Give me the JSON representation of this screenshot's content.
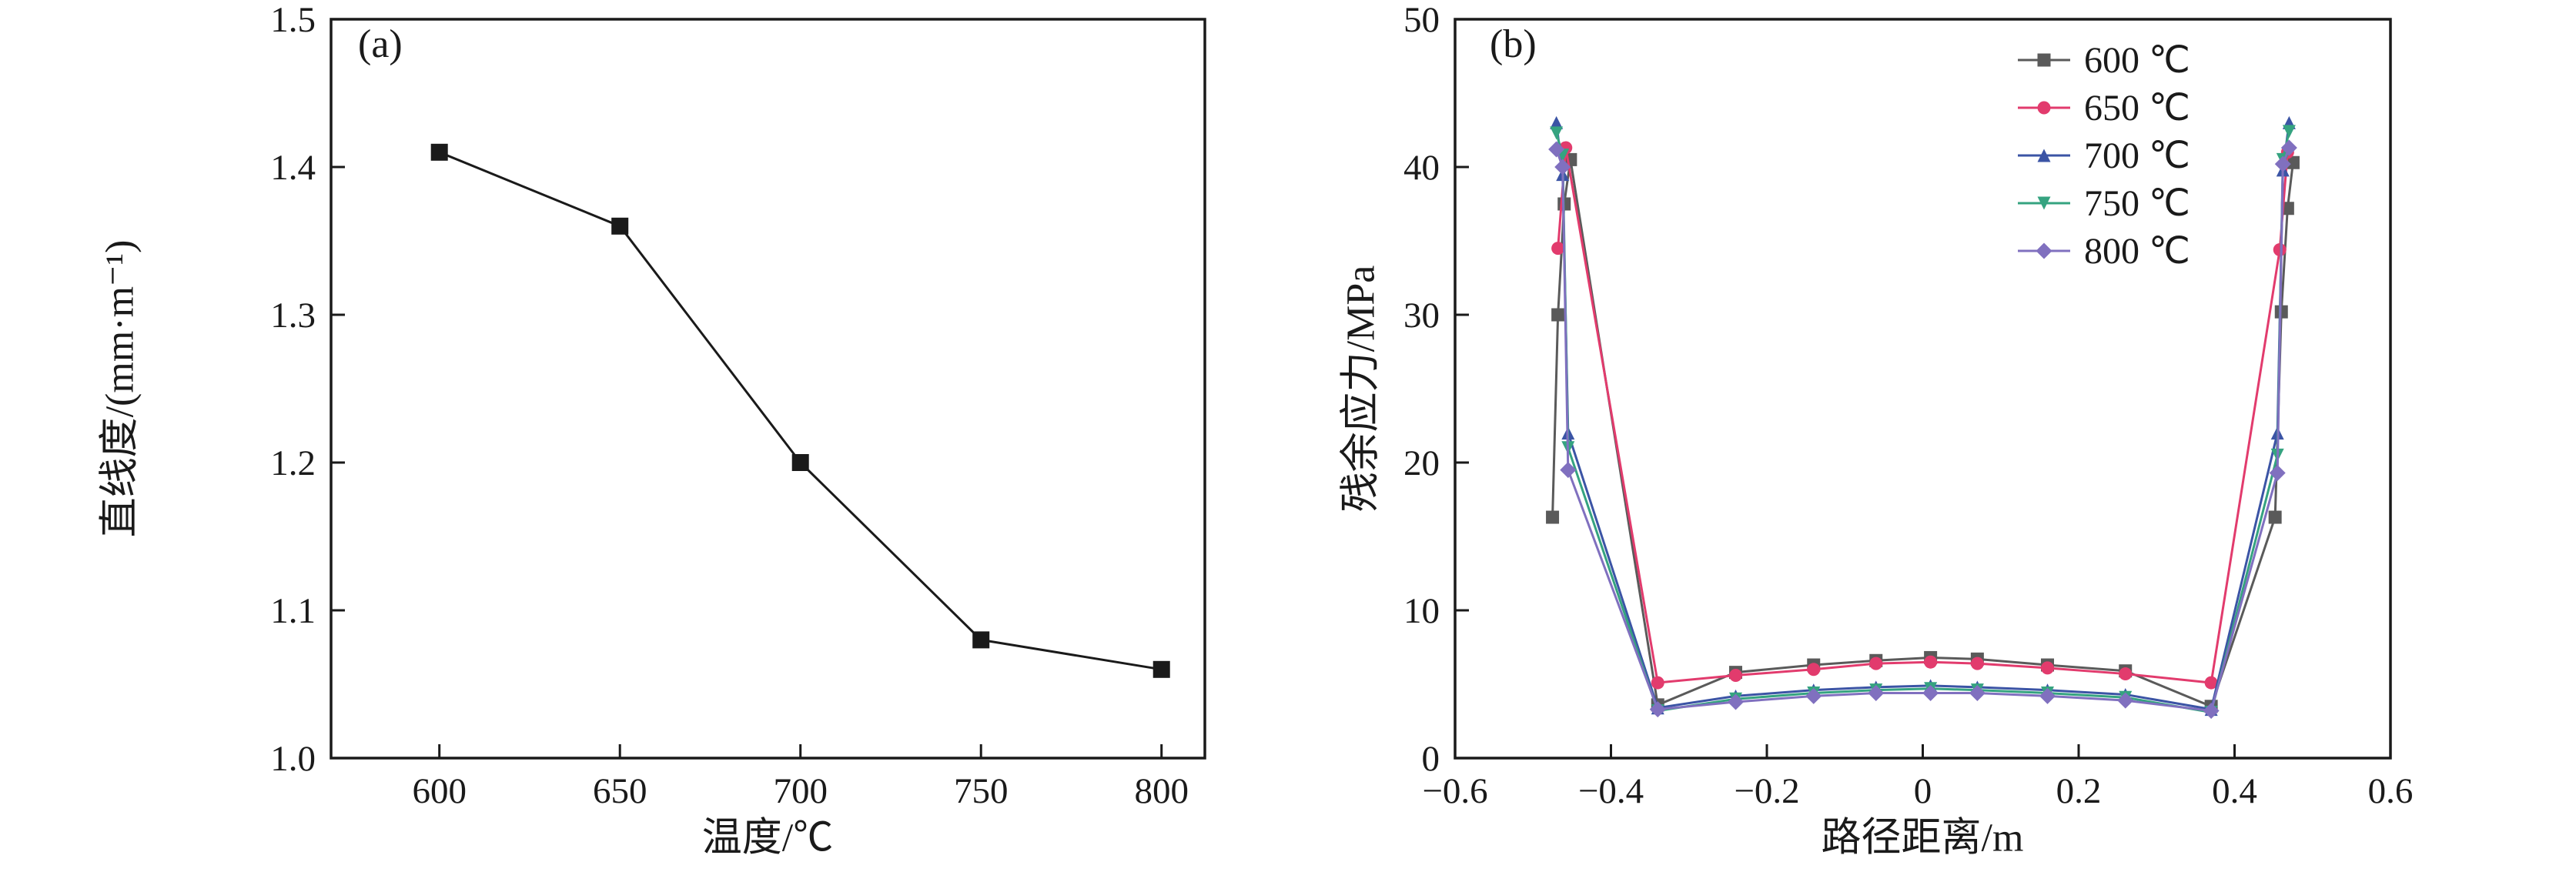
{
  "figure": {
    "background": "#ffffff",
    "axis_color": "#1a1a1a"
  },
  "chart_data": [
    {
      "type": "line",
      "panel_label": "(a)",
      "title": "",
      "xlabel": "温度/℃",
      "ylabel": "直线度/(mm·m⁻¹)",
      "x": [
        600,
        650,
        700,
        750,
        800
      ],
      "values": [
        1.41,
        1.36,
        1.2,
        1.08,
        1.06
      ],
      "xlim": [
        570,
        812
      ],
      "ylim": [
        1.0,
        1.5
      ],
      "xticks": [
        600,
        650,
        700,
        750,
        800
      ],
      "xtick_labels": [
        "600",
        "650",
        "700",
        "750",
        "800"
      ],
      "yticks": [
        1.0,
        1.1,
        1.2,
        1.3,
        1.4,
        1.5
      ],
      "ytick_labels": [
        "1.0",
        "1.1",
        "1.2",
        "1.3",
        "1.4",
        "1.5"
      ],
      "marker": "square",
      "marker_size": 22,
      "color": "#1a1a1a",
      "grid": false,
      "legend_position": "none"
    },
    {
      "type": "line",
      "panel_label": "(b)",
      "title": "",
      "xlabel": "路径距离/m",
      "ylabel": "残余应力/MPa",
      "xlim": [
        -0.6,
        0.6
      ],
      "ylim": [
        0,
        50
      ],
      "xticks": [
        -0.6,
        -0.4,
        -0.2,
        0,
        0.2,
        0.4,
        0.6
      ],
      "xtick_labels": [
        "−0.6",
        "−0.4",
        "−0.2",
        "0",
        "0.2",
        "0.4",
        "0.6"
      ],
      "yticks": [
        0,
        10,
        20,
        30,
        40,
        50
      ],
      "ytick_labels": [
        "0",
        "10",
        "20",
        "30",
        "40",
        "50"
      ],
      "marker_size": 17,
      "grid": false,
      "legend_position": "top-right",
      "series": [
        {
          "name": "600 ℃",
          "color": "#5a5a5a",
          "marker": "square",
          "points": [
            [
              -0.475,
              16.3
            ],
            [
              -0.468,
              30.0
            ],
            [
              -0.46,
              37.5
            ],
            [
              -0.452,
              40.5
            ],
            [
              -0.34,
              3.6
            ],
            [
              -0.24,
              5.8
            ],
            [
              -0.14,
              6.3
            ],
            [
              -0.06,
              6.6
            ],
            [
              0.01,
              6.8
            ],
            [
              0.07,
              6.7
            ],
            [
              0.16,
              6.3
            ],
            [
              0.26,
              5.9
            ],
            [
              0.37,
              3.5
            ],
            [
              0.452,
              16.3
            ],
            [
              0.46,
              30.2
            ],
            [
              0.468,
              37.2
            ],
            [
              0.475,
              40.3
            ]
          ]
        },
        {
          "name": "650 ℃",
          "color": "#e23b6d",
          "marker": "circle",
          "points": [
            [
              -0.468,
              34.5
            ],
            [
              -0.458,
              41.3
            ],
            [
              -0.34,
              5.1
            ],
            [
              -0.24,
              5.6
            ],
            [
              -0.14,
              6.0
            ],
            [
              -0.06,
              6.4
            ],
            [
              0.01,
              6.5
            ],
            [
              0.07,
              6.4
            ],
            [
              0.16,
              6.1
            ],
            [
              0.26,
              5.7
            ],
            [
              0.37,
              5.1
            ],
            [
              0.458,
              34.4
            ],
            [
              0.468,
              41.0
            ]
          ]
        },
        {
          "name": "700 ℃",
          "color": "#3b54a5",
          "marker": "triangle-up",
          "points": [
            [
              -0.47,
              43.0
            ],
            [
              -0.462,
              39.5
            ],
            [
              -0.455,
              22.0
            ],
            [
              -0.34,
              3.4
            ],
            [
              -0.24,
              4.2
            ],
            [
              -0.14,
              4.6
            ],
            [
              -0.06,
              4.8
            ],
            [
              0.01,
              4.9
            ],
            [
              0.07,
              4.8
            ],
            [
              0.16,
              4.6
            ],
            [
              0.26,
              4.3
            ],
            [
              0.37,
              3.3
            ],
            [
              0.455,
              22.0
            ],
            [
              0.462,
              39.8
            ],
            [
              0.47,
              43.0
            ]
          ]
        },
        {
          "name": "750 ℃",
          "color": "#35a380",
          "marker": "triangle-down",
          "points": [
            [
              -0.47,
              42.3
            ],
            [
              -0.462,
              40.8
            ],
            [
              -0.455,
              21.0
            ],
            [
              -0.34,
              3.2
            ],
            [
              -0.24,
              4.0
            ],
            [
              -0.14,
              4.4
            ],
            [
              -0.06,
              4.6
            ],
            [
              0.01,
              4.7
            ],
            [
              0.07,
              4.6
            ],
            [
              0.16,
              4.4
            ],
            [
              0.26,
              4.1
            ],
            [
              0.37,
              3.1
            ],
            [
              0.455,
              20.5
            ],
            [
              0.462,
              40.5
            ],
            [
              0.47,
              42.4
            ]
          ]
        },
        {
          "name": "800 ℃",
          "color": "#8070bf",
          "marker": "diamond",
          "points": [
            [
              -0.47,
              41.2
            ],
            [
              -0.462,
              40.0
            ],
            [
              -0.455,
              19.5
            ],
            [
              -0.34,
              3.3
            ],
            [
              -0.24,
              3.8
            ],
            [
              -0.14,
              4.2
            ],
            [
              -0.06,
              4.4
            ],
            [
              0.01,
              4.4
            ],
            [
              0.07,
              4.4
            ],
            [
              0.16,
              4.2
            ],
            [
              0.26,
              3.9
            ],
            [
              0.37,
              3.2
            ],
            [
              0.455,
              19.3
            ],
            [
              0.462,
              40.2
            ],
            [
              0.47,
              41.3
            ]
          ]
        }
      ]
    }
  ]
}
